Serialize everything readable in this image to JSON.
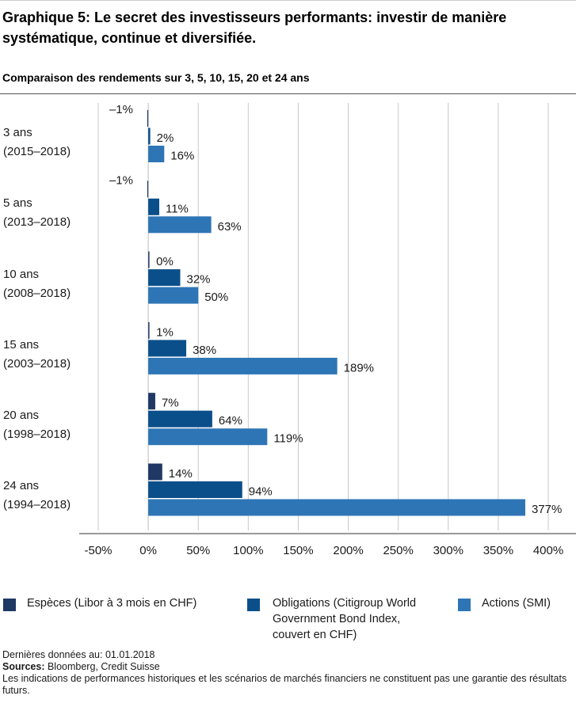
{
  "header": {
    "title": "Graphique 5: Le secret des investisseurs performants: investir de manière systématique, continue et diversifiée.",
    "subtitle": "Comparaison des rendements sur 3, 5, 10, 15, 20 et 24 ans"
  },
  "rows": [
    {
      "label1": "3 ans",
      "label2": "(2015–2018)"
    },
    {
      "label1": "5 ans",
      "label2": "(2013–2018)"
    },
    {
      "label1": "10 ans",
      "label2": "(2008–2018)"
    },
    {
      "label1": "15 ans",
      "label2": "(2003–2018)"
    },
    {
      "label1": "20 ans",
      "label2": "(1998–2018)"
    },
    {
      "label1": "24 ans",
      "label2": "(1994–2018)"
    }
  ],
  "chart_data": {
    "type": "bar",
    "orientation": "horizontal",
    "categories": [
      "3 ans (2015–2018)",
      "5 ans (2013–2018)",
      "10 ans (2008–2018)",
      "15 ans (2003–2018)",
      "20 ans (1998–2018)",
      "24 ans (1994–2018)"
    ],
    "series": [
      {
        "name": "Espèces (Libor à 3 mois en CHF)",
        "color": "#1f3864",
        "values": [
          -1,
          -1,
          0,
          1,
          7,
          14
        ],
        "labels": [
          "–1%",
          "–1%",
          "0%",
          "1%",
          "7%",
          "14%"
        ]
      },
      {
        "name": "Obligations (Citigroup World Government Bond Index, couvert en CHF)",
        "color": "#0b4f8a",
        "values": [
          2,
          11,
          32,
          38,
          64,
          94
        ],
        "labels": [
          "2%",
          "11%",
          "32%",
          "38%",
          "64%",
          "94%"
        ]
      },
      {
        "name": "Actions (SMI)",
        "color": "#2e75b6",
        "values": [
          16,
          63,
          50,
          189,
          119,
          377
        ],
        "labels": [
          "16%",
          "63%",
          "50%",
          "189%",
          "119%",
          "377%"
        ]
      }
    ],
    "xlim": [
      -50,
      400
    ],
    "xticks": [
      -50,
      0,
      50,
      100,
      150,
      200,
      250,
      300,
      350,
      400
    ],
    "xtick_labels": [
      "-50%",
      "0%",
      "50%",
      "100%",
      "150%",
      "200%",
      "250%",
      "300%",
      "350%",
      "400%"
    ],
    "grid": "vertical"
  },
  "legend": {
    "items": [
      {
        "lines": [
          "Espèces (Libor à 3 mois en CHF)"
        ],
        "color": "#1f3864"
      },
      {
        "lines": [
          "Obligations (Citigroup World",
          "Government Bond Index,",
          "couvert en CHF)"
        ],
        "color": "#0b4f8a"
      },
      {
        "lines": [
          "Actions (SMI)"
        ],
        "color": "#2e75b6"
      }
    ]
  },
  "footer": {
    "date_line": "Dernières données au: 01.01.2018",
    "sources_label": "Sources:",
    "sources_text": " Bloomberg, Credit Suisse",
    "disclaimer": "Les indications de performances historiques et les scénarios de marchés financiers ne constituent pas une garantie des résultats futurs."
  }
}
